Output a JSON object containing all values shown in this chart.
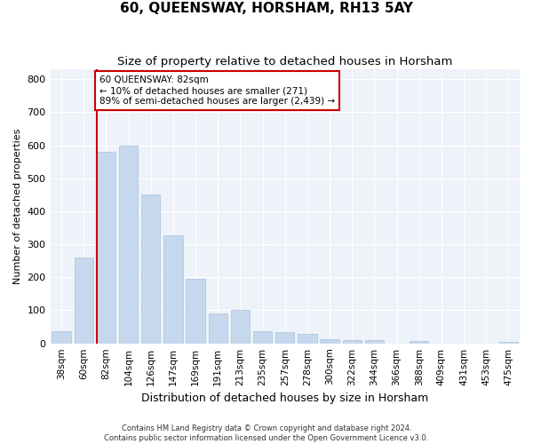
{
  "title": "60, QUEENSWAY, HORSHAM, RH13 5AY",
  "subtitle": "Size of property relative to detached houses in Horsham",
  "xlabel": "Distribution of detached houses by size in Horsham",
  "ylabel": "Number of detached properties",
  "categories": [
    "38sqm",
    "60sqm",
    "82sqm",
    "104sqm",
    "126sqm",
    "147sqm",
    "169sqm",
    "191sqm",
    "213sqm",
    "235sqm",
    "257sqm",
    "278sqm",
    "300sqm",
    "322sqm",
    "344sqm",
    "366sqm",
    "388sqm",
    "409sqm",
    "431sqm",
    "453sqm",
    "475sqm"
  ],
  "values": [
    38,
    260,
    580,
    600,
    450,
    328,
    195,
    90,
    100,
    37,
    35,
    30,
    12,
    10,
    10,
    0,
    8,
    0,
    0,
    0,
    5
  ],
  "bar_color": "#c5d8ed",
  "bar_edge_color": "#a8c4dc",
  "red_line_index": 2,
  "annotation_text": "60 QUEENSWAY: 82sqm\n← 10% of detached houses are smaller (271)\n89% of semi-detached houses are larger (2,439) →",
  "annotation_box_color": "#ffffff",
  "annotation_box_edge": "#cc0000",
  "ylim": [
    0,
    830
  ],
  "yticks": [
    0,
    100,
    200,
    300,
    400,
    500,
    600,
    700,
    800
  ],
  "background_color": "#eef2f9",
  "footer_line1": "Contains HM Land Registry data © Crown copyright and database right 2024.",
  "footer_line2": "Contains public sector information licensed under the Open Government Licence v3.0.",
  "title_fontsize": 11,
  "subtitle_fontsize": 9.5,
  "red_line_color": "#cc0000",
  "grid_color": "#ffffff",
  "ylabel_fontsize": 8,
  "xlabel_fontsize": 9,
  "tick_fontsize": 7.5,
  "ytick_fontsize": 8
}
